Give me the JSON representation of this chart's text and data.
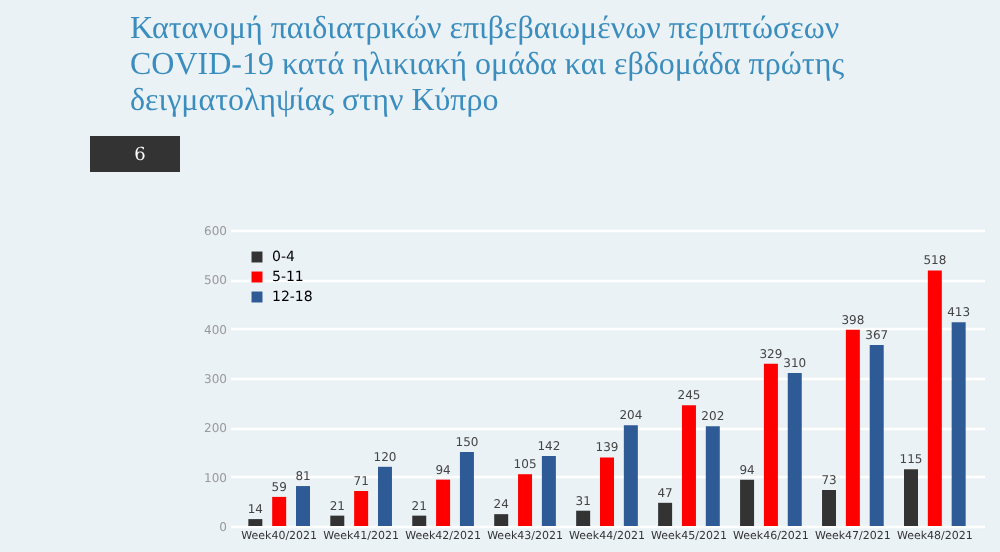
{
  "chart_data": {
    "type": "bar",
    "title": [
      "Κατανομή παιδιατρικών επιβεβαιωμένων περιπτώσεων",
      "COVID-19 κατά ηλικιακή ομάδα και εβδομάδα πρώτης",
      "δειγματοληψίας στην Κύπρο"
    ],
    "categories": [
      "Week40/2021",
      "Week41/2021",
      "Week42/2021",
      "Week43/2021",
      "Week44/2021",
      "Week45/2021",
      "Week46/2021",
      "Week47/2021",
      "Week48/2021"
    ],
    "series": [
      {
        "name": "0-4",
        "color": "#333333",
        "values": [
          14,
          21,
          21,
          24,
          31,
          47,
          94,
          73,
          115
        ]
      },
      {
        "name": "5-11",
        "color": "#ff0000",
        "values": [
          59,
          71,
          94,
          105,
          139,
          245,
          329,
          398,
          518
        ]
      },
      {
        "name": "12-18",
        "color": "#2e5a95",
        "values": [
          81,
          120,
          150,
          142,
          204,
          202,
          310,
          367,
          413
        ]
      }
    ],
    "ylim": [
      0,
      600
    ],
    "yticks": [
      0,
      100,
      200,
      300,
      400,
      500,
      600
    ],
    "grid": "y",
    "legend": "top left",
    "data_labels": true,
    "annotations": [
      "6"
    ]
  }
}
